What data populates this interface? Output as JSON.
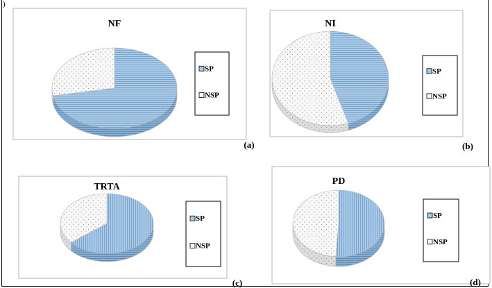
{
  "corner_mark": ")",
  "chart_data": [
    {
      "type": "pie",
      "title": "NF",
      "panel_label": "(a)",
      "categories": [
        "SP",
        "NSP"
      ],
      "values": [
        72,
        28
      ],
      "legend": [
        "SP",
        "NSP"
      ],
      "legend_position": "right",
      "style": "3d-pie"
    },
    {
      "type": "pie",
      "title": "NI",
      "panel_label": "(b)",
      "categories": [
        "SP",
        "NSP"
      ],
      "values": [
        45,
        55
      ],
      "legend": [
        "SP",
        "NSP"
      ],
      "legend_position": "right",
      "style": "3d-pie"
    },
    {
      "type": "pie",
      "title": "TRTA",
      "panel_label": "(c)",
      "categories": [
        "SP",
        "NSP"
      ],
      "values": [
        64,
        36
      ],
      "legend": [
        "SP",
        "NSP"
      ],
      "legend_position": "right",
      "style": "3d-pie"
    },
    {
      "type": "pie",
      "title": "PD",
      "panel_label": "(d)",
      "categories": [
        "SP",
        "NSP"
      ],
      "values": [
        51,
        49
      ],
      "legend": [
        "SP",
        "NSP"
      ],
      "legend_position": "right",
      "style": "3d-pie"
    }
  ],
  "colors": {
    "sp_fill": "#a9c9e6",
    "sp_line": "#6f9cc4",
    "sp_side": "#86aed2",
    "nsp_fill": "#f7f7f7",
    "nsp_side": "#dcdcdc",
    "dot": "#9a9a9a",
    "outline": "#b5b5b5"
  }
}
